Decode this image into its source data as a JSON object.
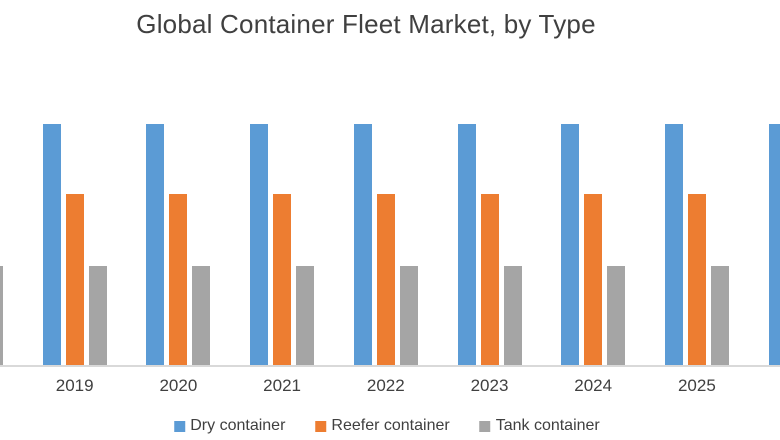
{
  "title": "Global Container Fleet Market, by Type",
  "colors": {
    "dry_container": "#5B9BD5",
    "reefer_container": "#ED7D31",
    "tank_container": "#A5A5A5",
    "axis_line": "#D9D9D9",
    "text": "#404040",
    "background": "#FFFFFF"
  },
  "legend": {
    "position": "bottom",
    "items": [
      {
        "label": "Dry container",
        "color": "#5B9BD5"
      },
      {
        "label": "Reefer container",
        "color": "#ED7D31"
      },
      {
        "label": "Tank container",
        "color": "#A5A5A5"
      }
    ]
  },
  "chart_data": {
    "type": "bar",
    "title": "Global Container Fleet Market, by Type",
    "categories": [
      "2019",
      "2020",
      "2021",
      "2022",
      "2023",
      "2024",
      "2025"
    ],
    "series": [
      {
        "name": "Dry container",
        "color": "#5B9BD5",
        "values": [
          100,
          100,
          100,
          100,
          100,
          100,
          100
        ]
      },
      {
        "name": "Reefer container",
        "color": "#ED7D31",
        "values": [
          71,
          71,
          71,
          71,
          71,
          71,
          71
        ]
      },
      {
        "name": "Tank container",
        "color": "#A5A5A5",
        "values": [
          41,
          41,
          41,
          41,
          41,
          41,
          41
        ]
      }
    ],
    "xlabel": "",
    "ylabel": "",
    "value_note": "No y-axis shown; values are relative heights with Dry container = 100",
    "grid": false,
    "legend_position": "bottom",
    "edge_partials": {
      "left": "partial Tank container bar of preceding (unlabeled) group visible at left edge",
      "right": "partial Dry container bar of following (unlabeled) group visible at right edge"
    }
  }
}
